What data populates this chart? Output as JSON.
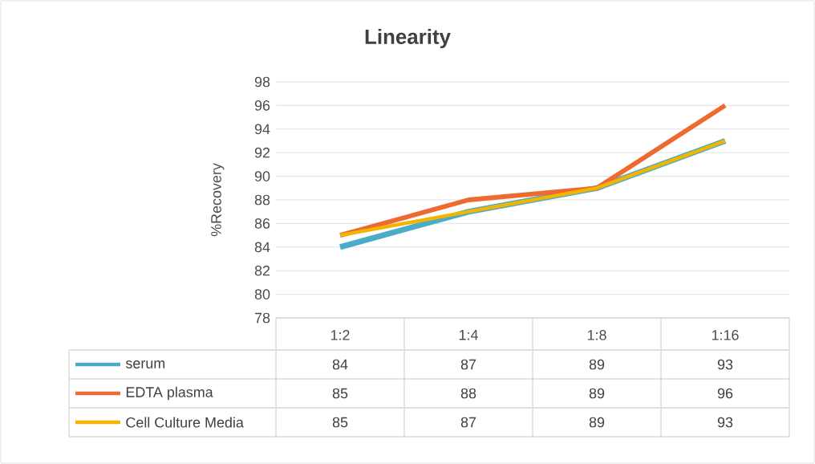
{
  "chart_data": {
    "type": "line",
    "title": "Linearity",
    "ylabel": "%Recovery",
    "categories": [
      "1:2",
      "1:4",
      "1:8",
      "1:16"
    ],
    "series": [
      {
        "name": "serum",
        "color": "#4aacc6",
        "values": [
          84,
          87,
          89,
          93
        ]
      },
      {
        "name": "EDTA plasma",
        "color": "#ed6a31",
        "values": [
          85,
          88,
          89,
          96
        ]
      },
      {
        "name": "Cell Culture Media",
        "color": "#f5b400",
        "values": [
          85,
          87,
          89,
          93
        ]
      }
    ],
    "ylim": [
      78,
      98
    ],
    "yticks": [
      78,
      80,
      82,
      84,
      86,
      88,
      90,
      92,
      94,
      96,
      98
    ],
    "grid": "y",
    "legend": "bottom",
    "data_labels": true,
    "marker": "none",
    "line_style": "solid"
  }
}
